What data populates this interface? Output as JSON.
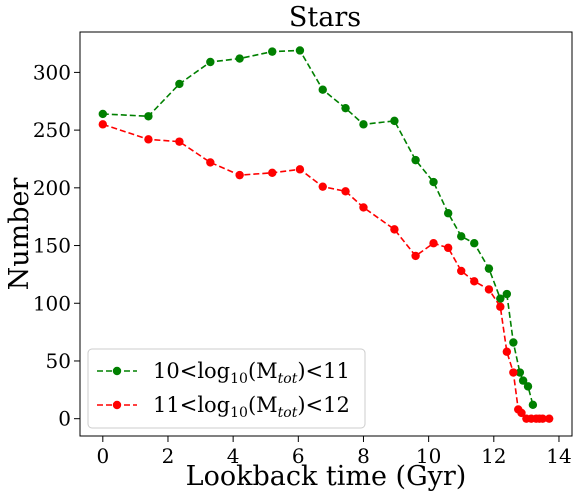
{
  "chart_data": {
    "type": "line",
    "title": "Stars",
    "xlabel": "Lookback time (Gyr)",
    "ylabel": "Number",
    "xlim": [
      -0.7,
      14.4
    ],
    "ylim": [
      -15,
      335
    ],
    "xticks": [
      0,
      2,
      4,
      6,
      8,
      10,
      12,
      14
    ],
    "yticks": [
      0,
      50,
      100,
      150,
      200,
      250,
      300
    ],
    "grid": false,
    "legend_position": "lower-left",
    "series": [
      {
        "name": "10<log10(Mtot)<11",
        "legend_base": "10<log",
        "legend_sub": "10",
        "legend_mid": "(M",
        "legend_sub2": "tot",
        "legend_end": ")<11",
        "color": "#008000",
        "x": [
          0.0,
          1.4,
          2.35,
          3.3,
          4.2,
          5.2,
          6.05,
          6.75,
          7.45,
          8.0,
          8.95,
          9.6,
          10.15,
          10.6,
          11.0,
          11.4,
          11.85,
          12.2,
          12.4,
          12.6,
          12.8,
          12.9,
          13.05,
          13.2
        ],
        "y": [
          264,
          262,
          290,
          309,
          312,
          318,
          319,
          285,
          269,
          255,
          258,
          224,
          205,
          178,
          158,
          152,
          130,
          104,
          108,
          66,
          40,
          33,
          28,
          12
        ]
      },
      {
        "name": "11<log10(Mtot)<12",
        "legend_base": "11<log",
        "legend_sub": "10",
        "legend_mid": "(M",
        "legend_sub2": "tot",
        "legend_end": ")<12",
        "color": "#ff0000",
        "x": [
          0.0,
          1.4,
          2.35,
          3.3,
          4.2,
          5.2,
          6.05,
          6.75,
          7.45,
          8.0,
          8.95,
          9.6,
          10.15,
          10.6,
          11.0,
          11.4,
          11.85,
          12.2,
          12.4,
          12.6,
          12.75,
          12.85,
          13.0,
          13.15,
          13.3,
          13.4,
          13.5,
          13.7
        ],
        "y": [
          255,
          242,
          240,
          222,
          211,
          213,
          216,
          201,
          197,
          183,
          164,
          141,
          152,
          148,
          128,
          119,
          112,
          97,
          58,
          40,
          8,
          5,
          0,
          0,
          0,
          0,
          0,
          0
        ]
      }
    ]
  }
}
